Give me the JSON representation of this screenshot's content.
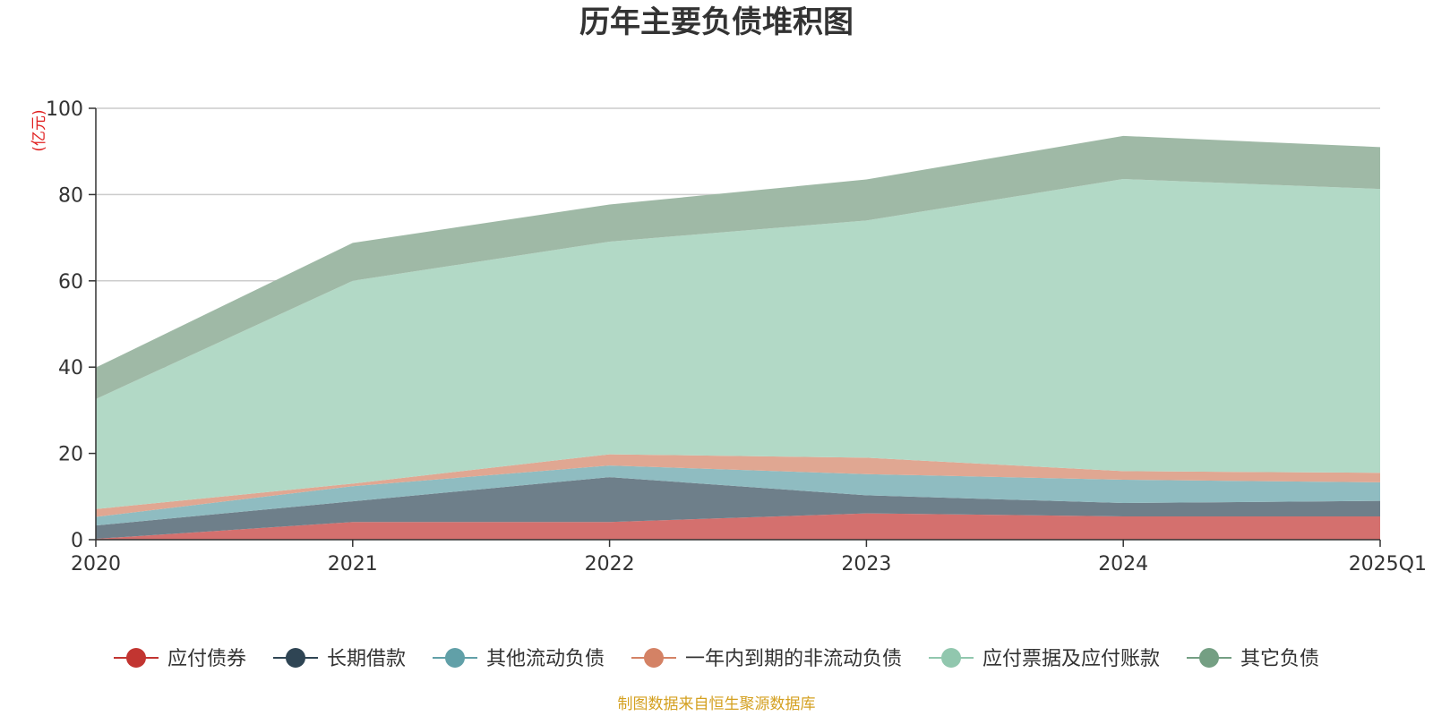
{
  "chart_data": {
    "type": "area",
    "stacked": true,
    "title": "历年主要负债堆积图",
    "unit_label": "(亿元)",
    "source": "制图数据来自恒生聚源数据库",
    "categories": [
      "2020",
      "2021",
      "2022",
      "2023",
      "2024",
      "2025Q1"
    ],
    "ylim": [
      0,
      100
    ],
    "yticks": [
      0,
      20,
      40,
      60,
      80,
      100
    ],
    "grid": true,
    "legend_position": "bottom",
    "series": [
      {
        "name": "应付债券",
        "values": [
          0.2,
          4.1,
          4.1,
          6.1,
          5.4,
          5.4
        ],
        "fill": "#d4706e",
        "marker": "#c23531"
      },
      {
        "name": "长期借款",
        "values": [
          3.1,
          4.8,
          10.4,
          4.2,
          3.1,
          3.6
        ],
        "fill": "#6e7f8a",
        "marker": "#2f4554"
      },
      {
        "name": "其他流动负债",
        "values": [
          2.0,
          3.5,
          2.7,
          4.9,
          5.4,
          4.3
        ],
        "fill": "#8fbcc1",
        "marker": "#61a0a8"
      },
      {
        "name": "一年内到期的非流动负债",
        "values": [
          1.8,
          0.6,
          2.6,
          3.8,
          2.0,
          2.2
        ],
        "fill": "#e0a792",
        "marker": "#d48265"
      },
      {
        "name": "应付票据及应付账款",
        "values": [
          25.5,
          47.0,
          49.3,
          55.0,
          67.7,
          65.8
        ],
        "fill": "#b2d9c6",
        "marker": "#91c7ae"
      },
      {
        "name": "其它负债",
        "values": [
          7.3,
          8.8,
          8.6,
          9.5,
          10.0,
          9.7
        ],
        "fill": "#9fb9a6",
        "marker": "#749f83"
      }
    ]
  }
}
